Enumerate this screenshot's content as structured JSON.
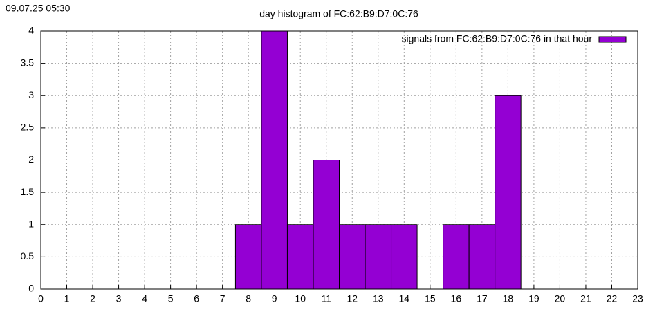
{
  "timestamp": "09.07.25 05:30",
  "chart_data": {
    "type": "bar",
    "title": "day histogram of FC:62:B9:D7:0C:76",
    "x": [
      8,
      9,
      10,
      11,
      12,
      13,
      14,
      16,
      17,
      18
    ],
    "series": [
      {
        "name": "signals from FC:62:B9:D7:0C:76 in that hour",
        "color": "#9400d3",
        "values": [
          1,
          4,
          1,
          2,
          1,
          1,
          1,
          1,
          1,
          3
        ]
      }
    ],
    "xlim": [
      0,
      23
    ],
    "xticks": [
      0,
      1,
      2,
      3,
      4,
      5,
      6,
      7,
      8,
      9,
      10,
      11,
      12,
      13,
      14,
      15,
      16,
      17,
      18,
      19,
      20,
      21,
      22,
      23
    ],
    "ylim": [
      0,
      4
    ],
    "yticks": [
      0,
      0.5,
      1,
      1.5,
      2,
      2.5,
      3,
      3.5,
      4
    ],
    "grid": true,
    "legend": "top-right"
  }
}
